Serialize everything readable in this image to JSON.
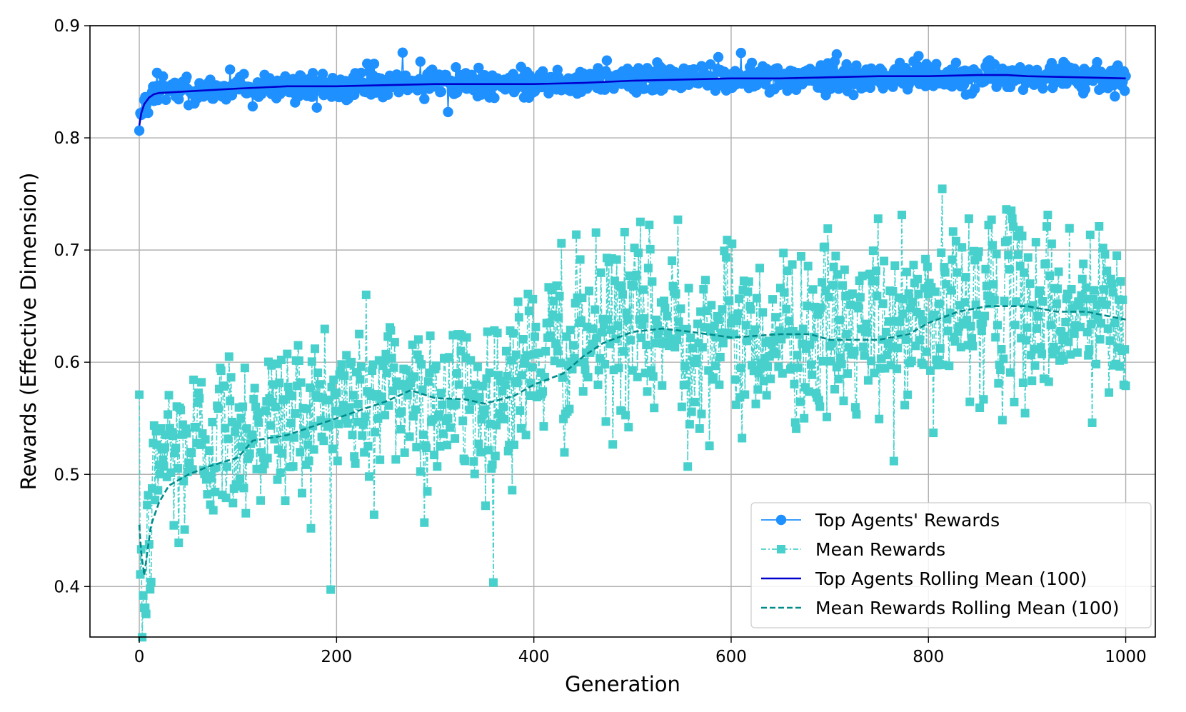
{
  "chart_data": {
    "type": "line",
    "title": "",
    "xlabel": "Generation",
    "ylabel": "Rewards (Effective Dimension)",
    "xlim": [
      -50,
      1030
    ],
    "ylim": [
      0.355,
      0.9
    ],
    "grid": true,
    "legend_position": "lower-right",
    "xticks": [
      0,
      200,
      400,
      600,
      800,
      1000
    ],
    "yticks": [
      0.4,
      0.5,
      0.6,
      0.7,
      0.8,
      0.9
    ],
    "colors": {
      "top_rewards": "#1e90ff",
      "mean_rewards": "#48d1cc",
      "top_rolling": "#0000cd",
      "mean_rolling": "#008b8b",
      "grid": "#b0b0b0"
    },
    "series": [
      {
        "name": "Top Agents' Rewards",
        "style": "solid-circle-markers",
        "x_start": 0,
        "x_end": 1000,
        "anchors": [
          [
            0,
            0.811
          ],
          [
            3,
            0.826
          ],
          [
            10,
            0.838
          ],
          [
            20,
            0.842
          ],
          [
            60,
            0.843
          ],
          [
            100,
            0.845
          ],
          [
            200,
            0.846
          ],
          [
            300,
            0.848
          ],
          [
            400,
            0.849
          ],
          [
            500,
            0.852
          ],
          [
            600,
            0.853
          ],
          [
            700,
            0.854
          ],
          [
            800,
            0.855
          ],
          [
            900,
            0.855
          ],
          [
            1000,
            0.853
          ]
        ],
        "noise": 0.006,
        "outliers": [
          [
            1,
            0.822
          ],
          [
            18,
            0.858
          ],
          [
            180,
            0.827
          ],
          [
            238,
            0.866
          ],
          [
            267,
            0.876
          ],
          [
            285,
            0.868
          ],
          [
            313,
            0.823
          ],
          [
            474,
            0.869
          ],
          [
            587,
            0.872
          ],
          [
            790,
            0.873
          ],
          [
            999,
            0.842
          ]
        ]
      },
      {
        "name": "Mean Rewards",
        "style": "dashdot-square-markers",
        "x_start": 0,
        "x_end": 1000,
        "anchors": [
          [
            0,
            0.46
          ],
          [
            3,
            0.4
          ],
          [
            5,
            0.385
          ],
          [
            8,
            0.42
          ],
          [
            12,
            0.46
          ],
          [
            20,
            0.52
          ],
          [
            50,
            0.525
          ],
          [
            100,
            0.54
          ],
          [
            200,
            0.56
          ],
          [
            260,
            0.575
          ],
          [
            300,
            0.57
          ],
          [
            350,
            0.565
          ],
          [
            400,
            0.6
          ],
          [
            450,
            0.62
          ],
          [
            500,
            0.63
          ],
          [
            600,
            0.625
          ],
          [
            700,
            0.625
          ],
          [
            760,
            0.625
          ],
          [
            800,
            0.64
          ],
          [
            850,
            0.65
          ],
          [
            900,
            0.648
          ],
          [
            950,
            0.645
          ],
          [
            1000,
            0.638
          ]
        ],
        "noise": 0.04,
        "outliers": [
          [
            6,
            0.381
          ],
          [
            4,
            0.392
          ],
          [
            40,
            0.439
          ],
          [
            289,
            0.457
          ],
          [
            238,
            0.464
          ],
          [
            351,
            0.472
          ],
          [
            546,
            0.727
          ],
          [
            556,
            0.507
          ],
          [
            749,
            0.728
          ],
          [
            841,
            0.728
          ],
          [
            864,
            0.727
          ],
          [
            805,
            0.537
          ],
          [
            920,
            0.721
          ],
          [
            434,
            0.556
          ],
          [
            428,
            0.706
          ],
          [
            492,
            0.716
          ],
          [
            966,
            0.546
          ],
          [
            1000,
            0.579
          ]
        ]
      },
      {
        "name": "Top Agents Rolling Mean (100)",
        "style": "solid-line",
        "points": [
          [
            0,
            0.811
          ],
          [
            2,
            0.822
          ],
          [
            5,
            0.83
          ],
          [
            10,
            0.836
          ],
          [
            15,
            0.839
          ],
          [
            20,
            0.84
          ],
          [
            40,
            0.841
          ],
          [
            60,
            0.842
          ],
          [
            100,
            0.844
          ],
          [
            150,
            0.846
          ],
          [
            200,
            0.846
          ],
          [
            300,
            0.848
          ],
          [
            350,
            0.848
          ],
          [
            400,
            0.848
          ],
          [
            450,
            0.849
          ],
          [
            500,
            0.851
          ],
          [
            550,
            0.852
          ],
          [
            600,
            0.853
          ],
          [
            650,
            0.853
          ],
          [
            700,
            0.854
          ],
          [
            750,
            0.855
          ],
          [
            800,
            0.855
          ],
          [
            850,
            0.856
          ],
          [
            880,
            0.856
          ],
          [
            900,
            0.855
          ],
          [
            950,
            0.854
          ],
          [
            1000,
            0.853
          ]
        ]
      },
      {
        "name": "Mean Rewards Rolling Mean (100)",
        "style": "dashed-line",
        "points": [
          [
            0,
            0.455
          ],
          [
            2,
            0.43
          ],
          [
            5,
            0.41
          ],
          [
            8,
            0.43
          ],
          [
            12,
            0.455
          ],
          [
            20,
            0.475
          ],
          [
            30,
            0.49
          ],
          [
            50,
            0.5
          ],
          [
            70,
            0.507
          ],
          [
            100,
            0.515
          ],
          [
            115,
            0.53
          ],
          [
            150,
            0.535
          ],
          [
            200,
            0.55
          ],
          [
            250,
            0.565
          ],
          [
            275,
            0.575
          ],
          [
            300,
            0.568
          ],
          [
            330,
            0.567
          ],
          [
            350,
            0.563
          ],
          [
            380,
            0.57
          ],
          [
            400,
            0.58
          ],
          [
            430,
            0.59
          ],
          [
            450,
            0.605
          ],
          [
            470,
            0.617
          ],
          [
            500,
            0.627
          ],
          [
            530,
            0.63
          ],
          [
            560,
            0.627
          ],
          [
            600,
            0.622
          ],
          [
            650,
            0.625
          ],
          [
            680,
            0.625
          ],
          [
            700,
            0.62
          ],
          [
            750,
            0.62
          ],
          [
            780,
            0.625
          ],
          [
            800,
            0.635
          ],
          [
            830,
            0.645
          ],
          [
            860,
            0.65
          ],
          [
            900,
            0.65
          ],
          [
            930,
            0.645
          ],
          [
            960,
            0.645
          ],
          [
            1000,
            0.638
          ]
        ]
      }
    ]
  }
}
